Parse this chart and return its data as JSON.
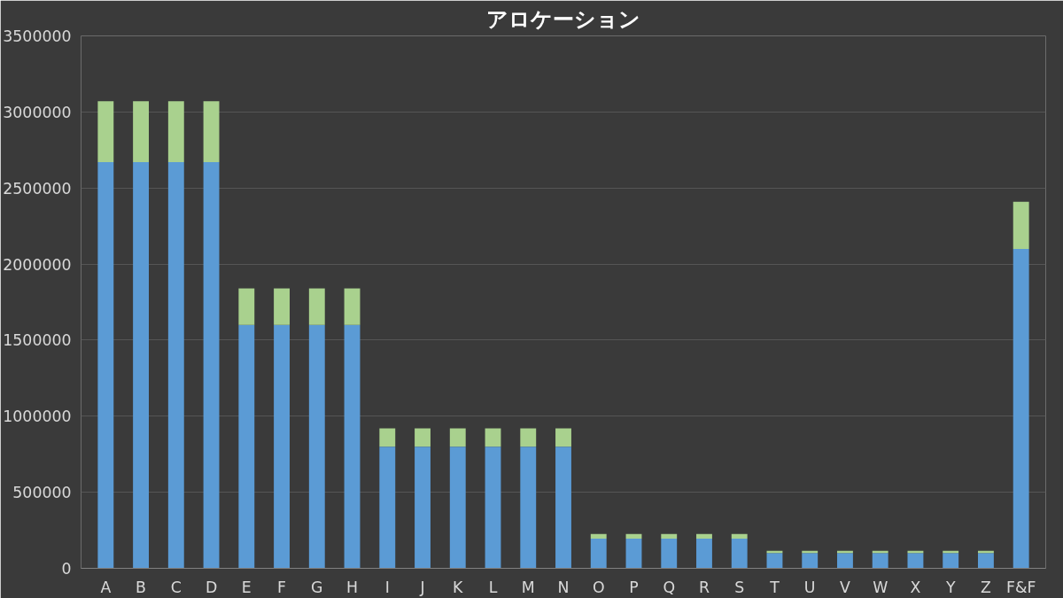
{
  "chart_data": {
    "type": "bar",
    "title": "アロケーション",
    "stacked": true,
    "categories": [
      "A",
      "B",
      "C",
      "D",
      "E",
      "F",
      "G",
      "H",
      "I",
      "J",
      "K",
      "L",
      "M",
      "N",
      "O",
      "P",
      "Q",
      "R",
      "S",
      "T",
      "U",
      "V",
      "W",
      "X",
      "Y",
      "Z",
      "F&F"
    ],
    "series": [
      {
        "color": "#5b9bd5",
        "values": [
          2670000,
          2670000,
          2670000,
          2670000,
          1600000,
          1600000,
          1600000,
          1600000,
          800000,
          800000,
          800000,
          800000,
          800000,
          800000,
          195000,
          195000,
          195000,
          195000,
          195000,
          100000,
          100000,
          100000,
          100000,
          100000,
          100000,
          100000,
          2100000
        ]
      },
      {
        "color": "#a9d18e",
        "values": [
          400000,
          400000,
          400000,
          400000,
          240000,
          240000,
          240000,
          240000,
          120000,
          120000,
          120000,
          120000,
          120000,
          120000,
          30000,
          30000,
          30000,
          30000,
          30000,
          15000,
          15000,
          15000,
          15000,
          15000,
          15000,
          15000,
          310000
        ]
      }
    ],
    "ylim": [
      0,
      3500000
    ],
    "yticks": [
      0,
      500000,
      1000000,
      1500000,
      2000000,
      2500000,
      3000000,
      3500000
    ],
    "grid": "y"
  }
}
